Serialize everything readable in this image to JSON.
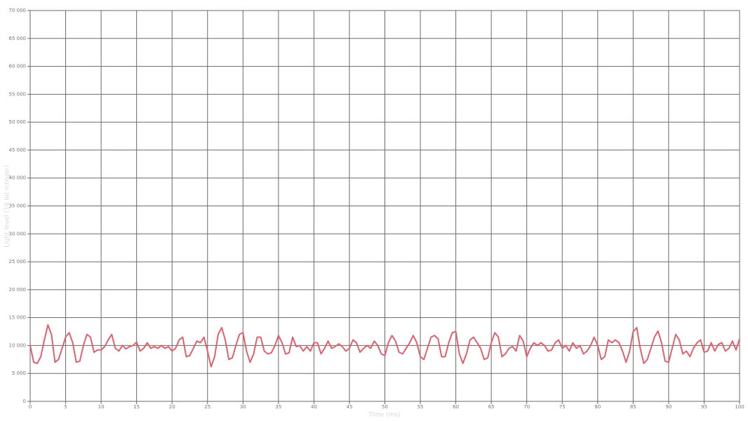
{
  "chart_data": {
    "type": "line",
    "x_label": "Time (ms)",
    "y_label": "Light level (16 bit integer)",
    "color": "#e0606e",
    "grid": true,
    "xlim": [
      0,
      100
    ],
    "ylim": [
      0,
      70000
    ],
    "xticks": [
      0,
      5,
      10,
      15,
      20,
      25,
      30,
      35,
      40,
      45,
      50,
      55,
      60,
      65,
      70,
      75,
      80,
      85,
      90,
      95,
      100
    ],
    "yticks": [
      0,
      {
        "value": 5000,
        "label": "5 000"
      },
      {
        "value": 10000,
        "label": "10 000"
      },
      {
        "value": 15000,
        "label": "15 000"
      },
      {
        "value": 20000,
        "label": "20 000"
      },
      {
        "value": 25000,
        "label": "25 000"
      },
      {
        "value": 30000,
        "label": "30 000"
      },
      {
        "value": 35000,
        "label": "35 000"
      },
      {
        "value": 40000,
        "label": "40 000"
      },
      {
        "value": 45000,
        "label": "45 000"
      },
      {
        "value": 50000,
        "label": "50 000"
      },
      {
        "value": 55000,
        "label": "55 000"
      },
      {
        "value": 60000,
        "label": "60 000"
      },
      {
        "value": 65000,
        "label": "65 000"
      },
      {
        "value": 70000,
        "label": "70 000"
      }
    ],
    "x": [
      0,
      0.5,
      1,
      1.5,
      2,
      2.5,
      3,
      3.5,
      4,
      4.5,
      5,
      5.5,
      6,
      6.5,
      7,
      7.5,
      8,
      8.5,
      9,
      9.5,
      10,
      10.5,
      11,
      11.5,
      12,
      12.5,
      13,
      13.5,
      14,
      14.5,
      15,
      15.5,
      16,
      16.5,
      17,
      17.5,
      18,
      18.5,
      19,
      19.5,
      20,
      20.5,
      21,
      21.5,
      22,
      22.5,
      23,
      23.5,
      24,
      24.5,
      25,
      25.5,
      26,
      26.5,
      27,
      27.5,
      28,
      28.5,
      29,
      29.5,
      30,
      30.5,
      31,
      31.5,
      32,
      32.5,
      33,
      33.5,
      34,
      34.5,
      35,
      35.5,
      36,
      36.5,
      37,
      37.5,
      38,
      38.5,
      39,
      39.5,
      40,
      40.5,
      41,
      41.5,
      42,
      42.5,
      43,
      43.5,
      44,
      44.5,
      45,
      45.5,
      46,
      46.5,
      47,
      47.5,
      48,
      48.5,
      49,
      49.5,
      50,
      50.5,
      51,
      51.5,
      52,
      52.5,
      53,
      53.5,
      54,
      54.5,
      55,
      55.5,
      56,
      56.5,
      57,
      57.5,
      58,
      58.5,
      59,
      59.5,
      60,
      60.5,
      61,
      61.5,
      62,
      62.5,
      63,
      63.5,
      64,
      64.5,
      65,
      65.5,
      66,
      66.5,
      67,
      67.5,
      68,
      68.5,
      69,
      69.5,
      70,
      70.5,
      71,
      71.5,
      72,
      72.5,
      73,
      73.5,
      74,
      74.5,
      75,
      75.5,
      76,
      76.5,
      77,
      77.5,
      78,
      78.5,
      79,
      79.5,
      80,
      80.5,
      81,
      81.5,
      82,
      82.5,
      83,
      83.5,
      84,
      84.5,
      85,
      85.5,
      86,
      86.5,
      87,
      87.5,
      88,
      88.5,
      89,
      89.5,
      90,
      90.5,
      91,
      91.5,
      92,
      92.5,
      93,
      93.5,
      94,
      94.5,
      95,
      95.5,
      96,
      96.5,
      97,
      97.5,
      98,
      98.5,
      99,
      99.5,
      100
    ],
    "values": [
      10000,
      7000,
      6800,
      8000,
      11000,
      13700,
      12000,
      7000,
      7500,
      9500,
      11500,
      12300,
      10500,
      7000,
      7200,
      10000,
      12000,
      11500,
      8800,
      9200,
      9200,
      9800,
      11000,
      12000,
      9500,
      9000,
      10000,
      9400,
      9800,
      10000,
      10600,
      9000,
      9500,
      10500,
      9500,
      9800,
      9500,
      10000,
      9500,
      9800,
      9000,
      9500,
      11000,
      11500,
      8000,
      8200,
      9500,
      10800,
      10500,
      11500,
      9000,
      6200,
      8000,
      12000,
      13200,
      11000,
      7500,
      7800,
      10000,
      12000,
      12300,
      9000,
      7000,
      8500,
      11500,
      11500,
      9000,
      8500,
      8700,
      10000,
      11800,
      10500,
      8500,
      8700,
      11500,
      9800,
      10000,
      9000,
      9800,
      9000,
      10500,
      10500,
      8500,
      9500,
      10800,
      9500,
      9800,
      10300,
      9800,
      9000,
      9500,
      11000,
      10500,
      8800,
      9500,
      10000,
      9500,
      10800,
      10000,
      8500,
      8200,
      10500,
      11800,
      10800,
      8800,
      8500,
      9500,
      10500,
      11800,
      10500,
      8000,
      7500,
      9500,
      11500,
      11800,
      11200,
      8000,
      8000,
      10500,
      12300,
      12500,
      8500,
      6800,
      8500,
      11000,
      11500,
      10500,
      9500,
      7500,
      7800,
      10500,
      12300,
      11500,
      8000,
      8500,
      9500,
      9800,
      9000,
      11800,
      10800,
      8000,
      9500,
      10500,
      10000,
      10500,
      10000,
      9000,
      9200,
      10500,
      11000,
      9500,
      10000,
      9000,
      10500,
      9500,
      10000,
      8500,
      9000,
      10000,
      11500,
      10000,
      7500,
      8000,
      11000,
      10500,
      11000,
      10500,
      9000,
      7000,
      9000,
      12500,
      13200,
      9500,
      6800,
      7500,
      9500,
      11500,
      12600,
      10500,
      7200,
      7000,
      9500,
      12000,
      11000,
      8500,
      9000,
      8000,
      9500,
      10500,
      11000,
      8800,
      9000,
      10500,
      9000,
      10200,
      10500,
      9000,
      9500,
      10800,
      9200,
      11200
    ]
  }
}
